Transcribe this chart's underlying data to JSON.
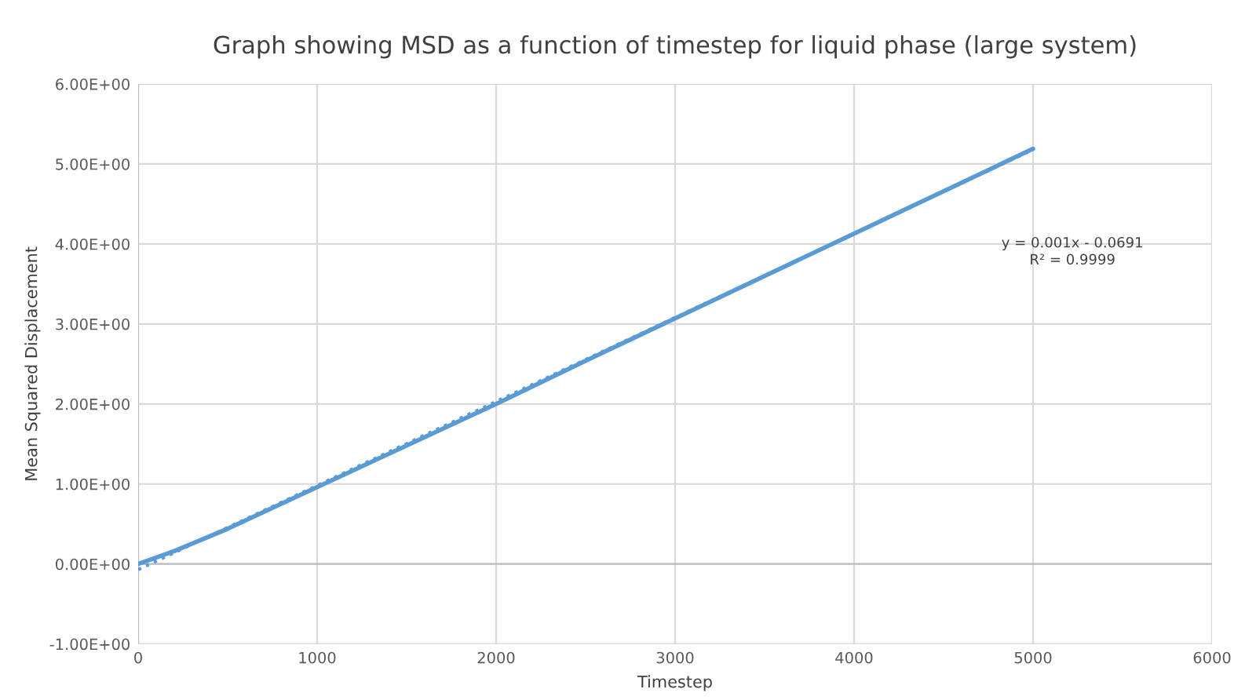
{
  "chart_data": {
    "type": "line",
    "title": "Graph showing MSD as a function of timestep for liquid phase (large system)",
    "xlabel": "Timestep",
    "ylabel": "Mean Squared Displacement",
    "series": [
      {
        "color": "#5b9bd5",
        "line_style": "solid",
        "x": [
          0,
          200,
          500,
          1000,
          1500,
          2000,
          2500,
          3000,
          3500,
          4000,
          4500,
          5000
        ],
        "values": [
          0.0,
          0.16,
          0.44,
          0.96,
          1.48,
          2.0,
          2.54,
          3.07,
          3.6,
          4.13,
          4.66,
          5.19
        ]
      },
      {
        "type": "line",
        "color": "#5b9bd5",
        "line_style": "dotted",
        "x": [
          0,
          5000
        ],
        "values": [
          -0.07,
          5.18
        ]
      }
    ],
    "xlim": [
      0,
      6000
    ],
    "xticks": [
      0,
      1000,
      2000,
      3000,
      4000,
      5000,
      6000
    ],
    "ylim": [
      -1,
      6
    ],
    "yticks": [
      {
        "value": -1,
        "label": "-1.00E+00"
      },
      {
        "value": 0,
        "label": "0.00E+00"
      },
      {
        "value": 1,
        "label": "1.00E+00"
      },
      {
        "value": 2,
        "label": "2.00E+00"
      },
      {
        "value": 3,
        "label": "3.00E+00"
      },
      {
        "value": 4,
        "label": "4.00E+00"
      },
      {
        "value": 5,
        "label": "5.00E+00"
      },
      {
        "value": 6,
        "label": "6.00E+00"
      }
    ],
    "grid": true,
    "legend": false,
    "annotations": [
      "y = 0.001x - 0.0691\nR² = 0.9999"
    ]
  }
}
